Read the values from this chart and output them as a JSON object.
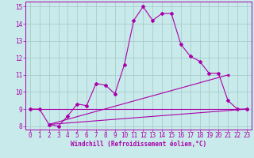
{
  "xlabel": "Windchill (Refroidissement éolien,°C)",
  "xlim": [
    -0.5,
    23.5
  ],
  "ylim": [
    7.8,
    15.3
  ],
  "yticks": [
    8,
    9,
    10,
    11,
    12,
    13,
    14,
    15
  ],
  "xticks": [
    0,
    1,
    2,
    3,
    4,
    5,
    6,
    7,
    8,
    9,
    10,
    11,
    12,
    13,
    14,
    15,
    16,
    17,
    18,
    19,
    20,
    21,
    22,
    23
  ],
  "background_color": "#c8eaea",
  "grid_color": "#aacccc",
  "line_color": "#aa00aa",
  "line1_x": [
    0,
    1,
    2,
    3,
    4,
    5,
    6,
    7,
    8,
    9,
    10,
    11,
    12,
    13,
    14,
    15,
    16,
    17,
    18,
    19,
    20,
    21,
    22,
    23
  ],
  "line1_y": [
    9.0,
    9.0,
    8.1,
    8.0,
    8.6,
    9.3,
    9.2,
    10.5,
    10.4,
    9.9,
    11.6,
    14.2,
    15.0,
    14.2,
    14.6,
    14.6,
    12.8,
    12.1,
    11.8,
    11.1,
    11.1,
    9.5,
    9.0,
    9.0
  ],
  "line2_x": [
    0,
    23
  ],
  "line2_y": [
    9.0,
    9.0
  ],
  "line3_x": [
    2,
    23
  ],
  "line3_y": [
    8.1,
    9.0
  ],
  "line4_x": [
    2,
    21
  ],
  "line4_y": [
    8.1,
    11.0
  ],
  "tick_fontsize": 5.5,
  "xlabel_fontsize": 5.5
}
